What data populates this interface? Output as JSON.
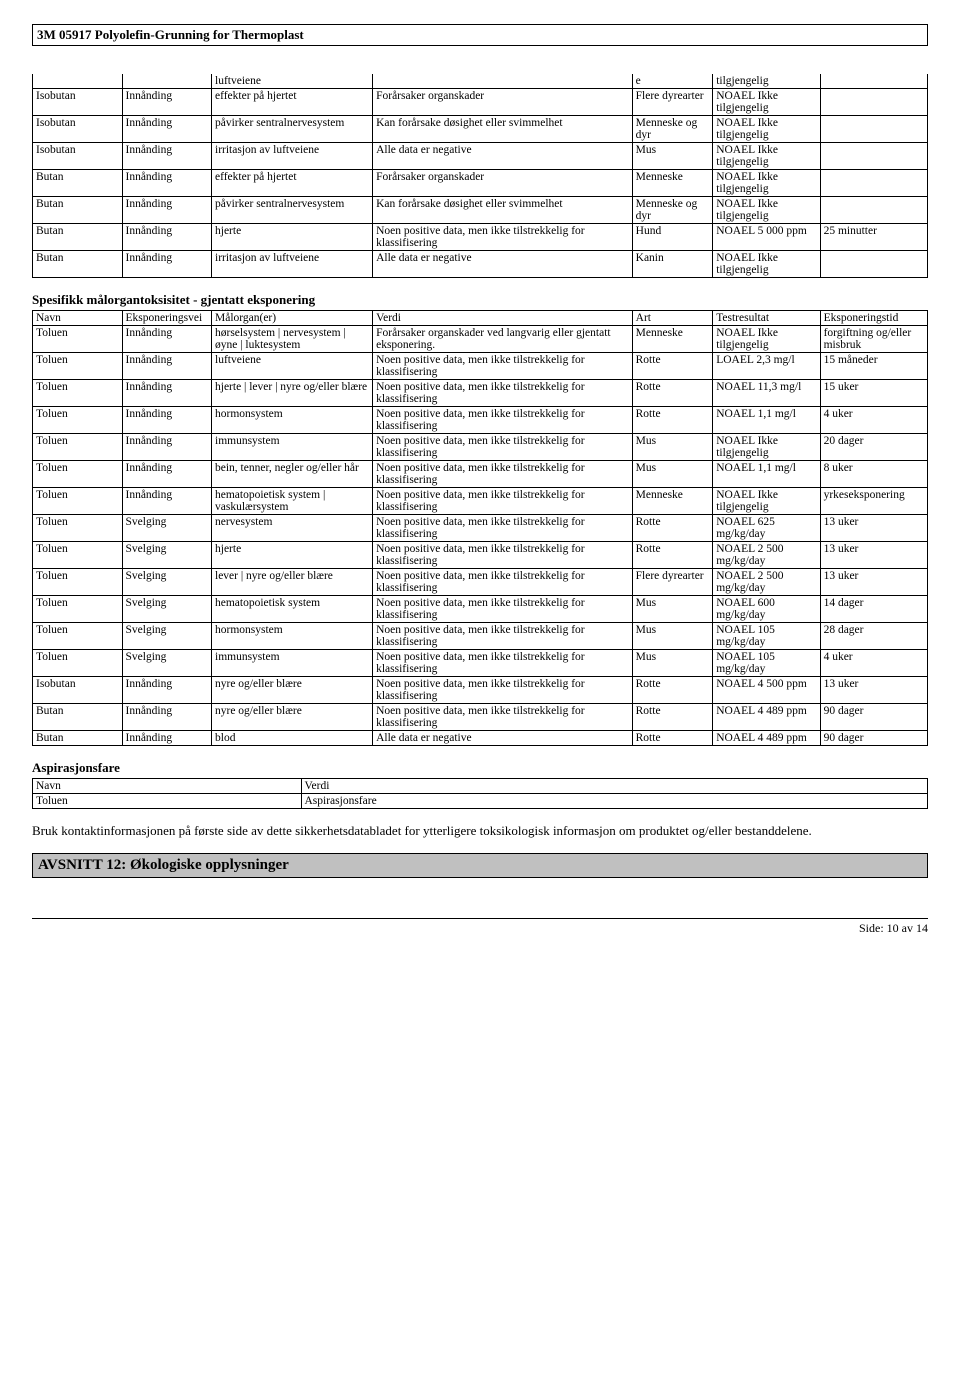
{
  "title": "3M 05917 Polyolefin-Grunning for Thermoplast",
  "footer": "Side: 10 av  14",
  "section2_heading": "Spesifikk målorgantoksisitet - gjentatt eksponering",
  "section3_heading": "Aspirasjonsfare",
  "body_text": "Bruk kontaktinformasjonen på første side av dette sikkerhetsdatabladet for ytterligere toksikologisk informasjon om produktet og/eller bestanddelene.",
  "section_bar": "AVSNITT 12: Økologiske opplysninger",
  "t2_headers": {
    "name": "Navn",
    "verdi": "Verdi"
  },
  "t2_row": {
    "name": "Toluen",
    "verdi": "Aspirasjonsfare"
  },
  "headers2": {
    "name": "Navn",
    "route": "Eksponeringsvei",
    "organ": "Målorgan(er)",
    "verdi": "Verdi",
    "art": "Art",
    "test": "Testresultat",
    "exp": "Eksponeringstid"
  },
  "rows1": [
    {
      "name": "",
      "route": "",
      "organ": "luftveiene",
      "verdi": "",
      "art": "e",
      "test": "tilgjengelig",
      "exp": ""
    },
    {
      "name": "Isobutan",
      "route": "Innånding",
      "organ": "effekter på hjertet",
      "verdi": "Forårsaker organskader",
      "art": "Flere dyrearter",
      "test": "NOAEL Ikke tilgjengelig",
      "exp": ""
    },
    {
      "name": "Isobutan",
      "route": "Innånding",
      "organ": "påvirker sentralnervesystem",
      "verdi": "Kan forårsake døsighet eller svimmelhet",
      "art": "Menneske og dyr",
      "test": "NOAEL Ikke tilgjengelig",
      "exp": ""
    },
    {
      "name": "Isobutan",
      "route": "Innånding",
      "organ": "irritasjon av luftveiene",
      "verdi": "Alle data er negative",
      "art": "Mus",
      "test": "NOAEL Ikke tilgjengelig",
      "exp": ""
    },
    {
      "name": "Butan",
      "route": "Innånding",
      "organ": "effekter på hjertet",
      "verdi": "Forårsaker organskader",
      "art": "Menneske",
      "test": "NOAEL Ikke tilgjengelig",
      "exp": ""
    },
    {
      "name": "Butan",
      "route": "Innånding",
      "organ": "påvirker sentralnervesystem",
      "verdi": "Kan forårsake døsighet eller svimmelhet",
      "art": "Menneske og dyr",
      "test": "NOAEL Ikke tilgjengelig",
      "exp": ""
    },
    {
      "name": "Butan",
      "route": "Innånding",
      "organ": "hjerte",
      "verdi": "Noen positive data, men ikke tilstrekkelig for klassifisering",
      "art": "Hund",
      "test": "NOAEL 5 000 ppm",
      "exp": "25 minutter"
    },
    {
      "name": "Butan",
      "route": "Innånding",
      "organ": "irritasjon av luftveiene",
      "verdi": "Alle data er negative",
      "art": "Kanin",
      "test": "NOAEL Ikke tilgjengelig",
      "exp": ""
    }
  ],
  "rows2": [
    {
      "name": "Toluen",
      "route": "Innånding",
      "organ": "hørselsystem | nervesystem | øyne | luktesystem",
      "verdi": "Forårsaker organskader ved langvarig eller gjentatt eksponering.",
      "art": "Menneske",
      "test": "NOAEL Ikke tilgjengelig",
      "exp": "forgiftning og/eller misbruk"
    },
    {
      "name": "Toluen",
      "route": "Innånding",
      "organ": "luftveiene",
      "verdi": "Noen positive data, men ikke tilstrekkelig for klassifisering",
      "art": "Rotte",
      "test": "LOAEL 2,3 mg/l",
      "exp": "15 måneder"
    },
    {
      "name": "Toluen",
      "route": "Innånding",
      "organ": "hjerte | lever | nyre og/eller blære",
      "verdi": "Noen positive data, men ikke tilstrekkelig for klassifisering",
      "art": "Rotte",
      "test": "NOAEL 11,3 mg/l",
      "exp": "15 uker"
    },
    {
      "name": "Toluen",
      "route": "Innånding",
      "organ": "hormonsystem",
      "verdi": "Noen positive data, men ikke tilstrekkelig for klassifisering",
      "art": "Rotte",
      "test": "NOAEL 1,1 mg/l",
      "exp": "4 uker"
    },
    {
      "name": "Toluen",
      "route": "Innånding",
      "organ": "immunsystem",
      "verdi": "Noen positive data, men ikke tilstrekkelig for klassifisering",
      "art": "Mus",
      "test": "NOAEL Ikke tilgjengelig",
      "exp": "20 dager"
    },
    {
      "name": "Toluen",
      "route": "Innånding",
      "organ": "bein, tenner, negler og/eller hår",
      "verdi": "Noen positive data, men ikke tilstrekkelig for klassifisering",
      "art": "Mus",
      "test": "NOAEL 1,1 mg/l",
      "exp": "8 uker"
    },
    {
      "name": "Toluen",
      "route": "Innånding",
      "organ": "hematopoietisk system | vaskulærsystem",
      "verdi": "Noen positive data, men ikke tilstrekkelig for klassifisering",
      "art": "Menneske",
      "test": "NOAEL Ikke tilgjengelig",
      "exp": "yrkeseksponering"
    },
    {
      "name": "Toluen",
      "route": "Svelging",
      "organ": "nervesystem",
      "verdi": "Noen positive data, men ikke tilstrekkelig for klassifisering",
      "art": "Rotte",
      "test": "NOAEL 625 mg/kg/day",
      "exp": "13 uker"
    },
    {
      "name": "Toluen",
      "route": "Svelging",
      "organ": "hjerte",
      "verdi": "Noen positive data, men ikke tilstrekkelig for klassifisering",
      "art": "Rotte",
      "test": "NOAEL 2 500 mg/kg/day",
      "exp": "13 uker"
    },
    {
      "name": "Toluen",
      "route": "Svelging",
      "organ": "lever | nyre og/eller blære",
      "verdi": "Noen positive data, men ikke tilstrekkelig for klassifisering",
      "art": "Flere dyrearter",
      "test": "NOAEL 2 500 mg/kg/day",
      "exp": "13 uker"
    },
    {
      "name": "Toluen",
      "route": "Svelging",
      "organ": "hematopoietisk system",
      "verdi": "Noen positive data, men ikke tilstrekkelig for klassifisering",
      "art": "Mus",
      "test": "NOAEL 600 mg/kg/day",
      "exp": "14 dager"
    },
    {
      "name": "Toluen",
      "route": "Svelging",
      "organ": "hormonsystem",
      "verdi": "Noen positive data, men ikke tilstrekkelig for klassifisering",
      "art": "Mus",
      "test": "NOAEL 105 mg/kg/day",
      "exp": "28 dager"
    },
    {
      "name": "Toluen",
      "route": "Svelging",
      "organ": "immunsystem",
      "verdi": "Noen positive data, men ikke tilstrekkelig for klassifisering",
      "art": "Mus",
      "test": "NOAEL 105 mg/kg/day",
      "exp": "4 uker"
    },
    {
      "name": "Isobutan",
      "route": "Innånding",
      "organ": "nyre og/eller blære",
      "verdi": "Noen positive data, men ikke tilstrekkelig for klassifisering",
      "art": "Rotte",
      "test": "NOAEL 4 500 ppm",
      "exp": "13 uker"
    },
    {
      "name": "Butan",
      "route": "Innånding",
      "organ": "nyre og/eller blære",
      "verdi": "Noen positive data, men ikke tilstrekkelig for klassifisering",
      "art": "Rotte",
      "test": "NOAEL 4 489 ppm",
      "exp": "90 dager"
    },
    {
      "name": "Butan",
      "route": "Innånding",
      "organ": "blod",
      "verdi": "Alle data er negative",
      "art": "Rotte",
      "test": "NOAEL 4 489 ppm",
      "exp": "90 dager"
    }
  ]
}
